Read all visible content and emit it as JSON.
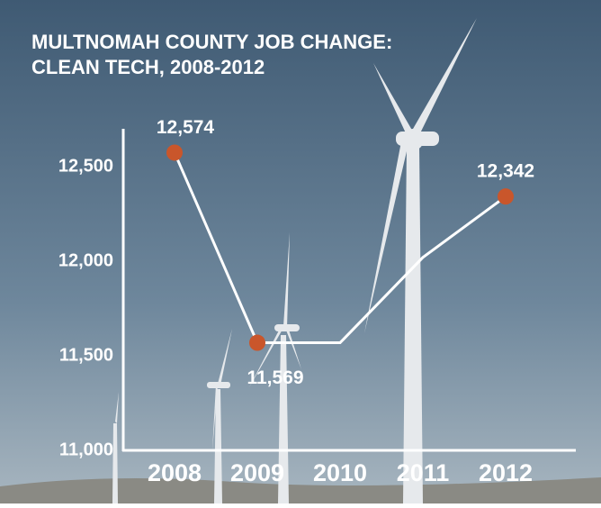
{
  "chart_data": {
    "type": "line",
    "title": [
      "MULTNOMAH COUNTY JOB CHANGE:",
      "CLEAN TECH, 2008-2012"
    ],
    "categories": [
      "2008",
      "2009",
      "2010",
      "2011",
      "2012"
    ],
    "values": [
      12574,
      11569,
      11569,
      12020,
      12342
    ],
    "value_labels": [
      "12,574",
      "11,569",
      null,
      null,
      "12,342"
    ],
    "color": "#ffffff",
    "marker_color": "#c9562b",
    "ylim": [
      11000,
      12700
    ],
    "yticks": [
      {
        "value": 11000,
        "label": "11,000"
      },
      {
        "value": 11500,
        "label": "11,500"
      },
      {
        "value": 12000,
        "label": "12,000"
      },
      {
        "value": 12500,
        "label": "12,500"
      }
    ],
    "grid": false
  }
}
